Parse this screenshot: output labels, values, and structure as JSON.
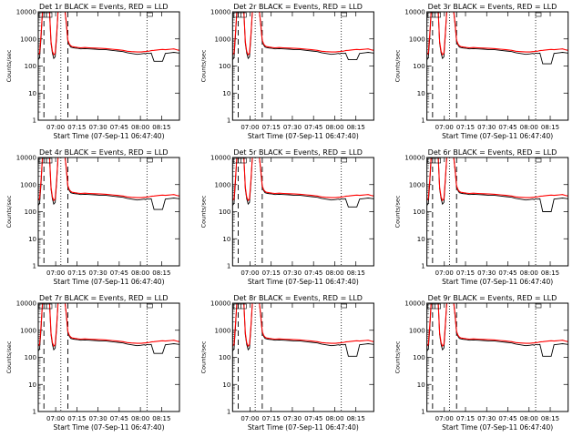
{
  "chart_data": {
    "type": "line",
    "layout": "3x3 grid of panels",
    "y_scale": "log",
    "ylim": [
      1,
      10000
    ],
    "ylabel": "Counts/sec",
    "xlabel": "Start Time (07-Sep-11 06:47:40)",
    "x_tick_labels": [
      "07:00",
      "07:15",
      "07:30",
      "07:45",
      "08:00",
      "08:15"
    ],
    "y_tick_labels": [
      "1",
      "10",
      "100",
      "1000",
      "10000"
    ],
    "x_ticks_min": [
      12.33,
      27.33,
      42.33,
      57.33,
      72.33,
      87.33
    ],
    "x_range_min": [
      0,
      100
    ],
    "y_ticks": [
      1,
      10,
      100,
      1000,
      10000
    ],
    "colors": {
      "events": "#000000",
      "lld": "#ff0000"
    },
    "panels": [
      {
        "title": "Det 1r BLACK = Events, RED = LLD",
        "dip": 150,
        "vlines_dashed": [
          4,
          21
        ],
        "vlines_dotted": [
          16,
          77
        ]
      },
      {
        "title": "Det 2r BLACK = Events, RED = LLD",
        "dip": 170,
        "vlines_dashed": [
          4,
          21
        ],
        "vlines_dotted": [
          16,
          77
        ]
      },
      {
        "title": "Det 3r BLACK = Events, RED = LLD",
        "dip": 120,
        "vlines_dashed": [
          4,
          21
        ],
        "vlines_dotted": [
          16,
          77
        ]
      },
      {
        "title": "Det 4r BLACK = Events, RED = LLD",
        "dip": 120,
        "vlines_dashed": [
          4,
          21
        ],
        "vlines_dotted": [
          16,
          77
        ]
      },
      {
        "title": "Det 5r BLACK = Events, RED = LLD",
        "dip": 150,
        "vlines_dashed": [
          4,
          21
        ],
        "vlines_dotted": [
          16,
          77
        ]
      },
      {
        "title": "Det 6r BLACK = Events, RED = LLD",
        "dip": 100,
        "vlines_dashed": [
          4,
          21
        ],
        "vlines_dotted": [
          16,
          77
        ]
      },
      {
        "title": "Det 7r BLACK = Events, RED = LLD",
        "dip": 140,
        "vlines_dashed": [
          4,
          21
        ],
        "vlines_dotted": [
          16,
          77
        ]
      },
      {
        "title": "Det 8r BLACK = Events, RED = LLD",
        "dip": 110,
        "vlines_dashed": [
          4,
          21
        ],
        "vlines_dotted": [
          16,
          77
        ]
      },
      {
        "title": "Det 9r BLACK = Events, RED = LLD",
        "dip": 110,
        "vlines_dashed": [
          4,
          21
        ],
        "vlines_dotted": [
          16,
          77
        ]
      }
    ],
    "series": [
      {
        "color": "black",
        "x": [
          0,
          1,
          2,
          3,
          4,
          5,
          6,
          7,
          8,
          9,
          10,
          11,
          12,
          13,
          14,
          15,
          16,
          17,
          18,
          19,
          20,
          21,
          22,
          23,
          24,
          25,
          26,
          28,
          30,
          33,
          36,
          40,
          44,
          48,
          52,
          56,
          60,
          63,
          66,
          70,
          73,
          75,
          76,
          77,
          78,
          79,
          80,
          82,
          84,
          86,
          88,
          90,
          92,
          94,
          96,
          98,
          100
        ],
        "y": [
          170,
          200,
          1100,
          10000,
          10000,
          10000,
          10000,
          10000,
          10000,
          700,
          300,
          190,
          220,
          1200,
          10000,
          10000,
          10000,
          10000,
          10000,
          10000,
          3000,
          800,
          600,
          500,
          480,
          470,
          460,
          450,
          430,
          440,
          430,
          420,
          400,
          400,
          380,
          360,
          340,
          310,
          290,
          270,
          280,
          290,
          280,
          300,
          290,
          290,
          300,
          "dip",
          "dip",
          "dip",
          "dip",
          290,
          300,
          310,
          320,
          310,
          300
        ]
      },
      {
        "color": "red",
        "x": [
          0,
          1,
          2,
          3,
          4,
          5,
          6,
          7,
          8,
          9,
          10,
          11,
          12,
          13,
          14,
          15,
          16,
          17,
          18,
          19,
          20,
          21,
          22,
          23,
          24,
          25,
          26,
          28,
          30,
          33,
          36,
          40,
          44,
          48,
          52,
          56,
          60,
          63,
          66,
          70,
          73,
          75,
          76,
          77,
          78,
          79,
          80,
          82,
          84,
          86,
          88,
          90,
          92,
          94,
          96,
          98,
          100
        ],
        "y": [
          260,
          300,
          1500,
          10000,
          10000,
          10000,
          10000,
          10000,
          10000,
          800,
          350,
          260,
          300,
          1500,
          10000,
          10000,
          10000,
          10000,
          10000,
          10000,
          3500,
          900,
          650,
          560,
          520,
          510,
          500,
          480,
          470,
          480,
          470,
          460,
          450,
          440,
          420,
          400,
          380,
          350,
          340,
          330,
          330,
          340,
          340,
          350,
          350,
          360,
          370,
          380,
          390,
          400,
          410,
          400,
          410,
          420,
          430,
          400,
          380
        ]
      }
    ]
  }
}
